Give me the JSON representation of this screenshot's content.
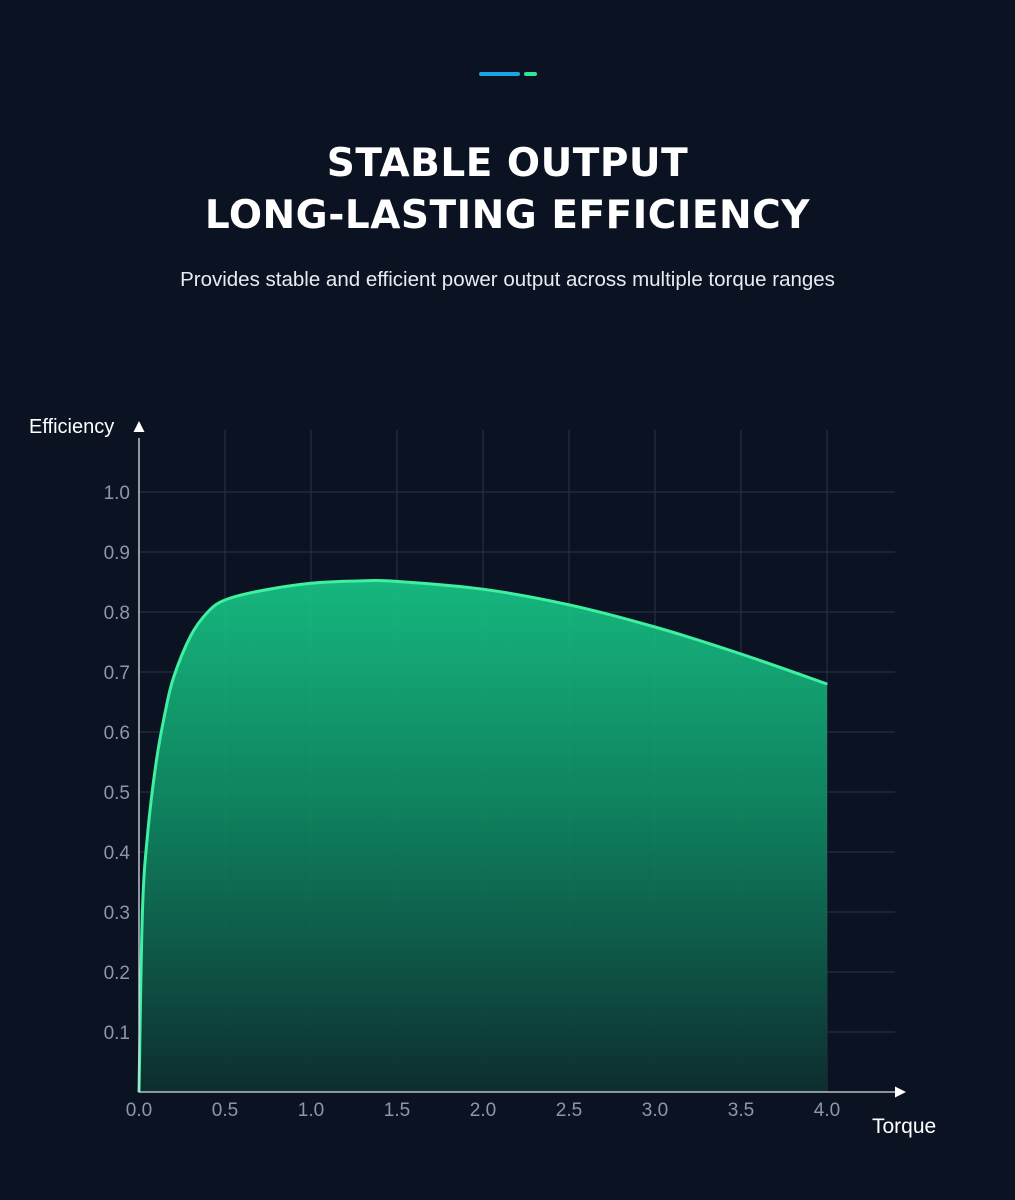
{
  "colors": {
    "background": "#0b1323",
    "accent_blue": "#1aa3e8",
    "accent_green": "#2ee59a",
    "curve": "#3ef0a0",
    "fill_top": "#17c586",
    "fill_bottom": "#0d2e2f",
    "grid": "#2a3547",
    "tick_text": "#8e97a6"
  },
  "header": {
    "title_line1": "STABLE OUTPUT",
    "title_line2": "LONG-LASTING EFFICIENCY",
    "subtitle": "Provides stable and efficient power output across multiple torque ranges"
  },
  "chart_data": {
    "type": "area",
    "title": "",
    "xlabel": "Torque",
    "ylabel": "Efficiency",
    "xlim": [
      0.0,
      4.0
    ],
    "ylim": [
      0.0,
      1.0
    ],
    "x_ticks": [
      "0.0",
      "0.5",
      "1.0",
      "1.5",
      "2.0",
      "2.5",
      "3.0",
      "3.5",
      "4.0"
    ],
    "y_ticks": [
      "0.1",
      "0.2",
      "0.3",
      "0.4",
      "0.5",
      "0.6",
      "0.7",
      "0.8",
      "0.9",
      "1.0"
    ],
    "grid": true,
    "series": [
      {
        "x": [
          0.0,
          0.02,
          0.05,
          0.1,
          0.15,
          0.2,
          0.3,
          0.4,
          0.5,
          0.7,
          1.0,
          1.3,
          1.5,
          2.0,
          2.5,
          3.0,
          3.5,
          4.0
        ],
        "y": [
          0.0,
          0.3,
          0.43,
          0.55,
          0.63,
          0.69,
          0.76,
          0.8,
          0.82,
          0.835,
          0.848,
          0.852,
          0.851,
          0.838,
          0.812,
          0.775,
          0.73,
          0.68
        ]
      }
    ]
  }
}
